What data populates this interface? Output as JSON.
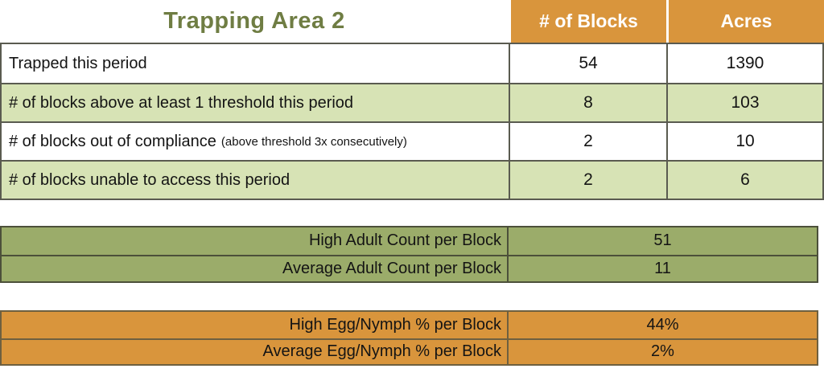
{
  "title": "Trapping Area 2",
  "colors": {
    "orange": "#D9953C",
    "light_green": "#D7E3B5",
    "olive": "#9BAC6A",
    "title_green": "#6F7D43",
    "header_text": "#ffffff"
  },
  "main_table": {
    "columns": [
      "# of Blocks",
      "Acres"
    ],
    "rows": [
      {
        "label": "Trapped this period",
        "note": "",
        "blocks": "54",
        "acres": "1390"
      },
      {
        "label": "# of blocks above at least 1 threshold this period",
        "note": "",
        "blocks": "8",
        "acres": "103"
      },
      {
        "label": "# of blocks out of compliance",
        "note": "(above threshold 3x consecutively)",
        "blocks": "2",
        "acres": "10"
      },
      {
        "label": "# of blocks unable to access this period",
        "note": "",
        "blocks": "2",
        "acres": "6"
      }
    ]
  },
  "adult_table": {
    "rows": [
      {
        "label": "High Adult Count per Block",
        "value": "51"
      },
      {
        "label": "Average Adult Count per Block",
        "value": "11"
      }
    ]
  },
  "egg_table": {
    "rows": [
      {
        "label": "High Egg/Nymph % per Block",
        "value": "44%"
      },
      {
        "label": "Average Egg/Nymph % per Block",
        "value": "2%"
      }
    ]
  },
  "chart_data": {
    "type": "table",
    "title": "Trapping Area 2",
    "columns": [
      "",
      "# of Blocks",
      "Acres"
    ],
    "rows": [
      [
        "Trapped this period",
        54,
        1390
      ],
      [
        "# of blocks above at least 1 threshold this period",
        8,
        103
      ],
      [
        "# of blocks out of compliance (above threshold 3x consecutively)",
        2,
        10
      ],
      [
        "# of blocks unable to access this period",
        2,
        6
      ]
    ],
    "summary_tables": [
      {
        "theme": "olive",
        "rows": [
          [
            "High Adult Count per Block",
            51
          ],
          [
            "Average Adult Count per Block",
            11
          ]
        ]
      },
      {
        "theme": "orange",
        "rows": [
          [
            "High Egg/Nymph % per Block",
            "44%"
          ],
          [
            "Average Egg/Nymph % per Block",
            "2%"
          ]
        ]
      }
    ]
  }
}
